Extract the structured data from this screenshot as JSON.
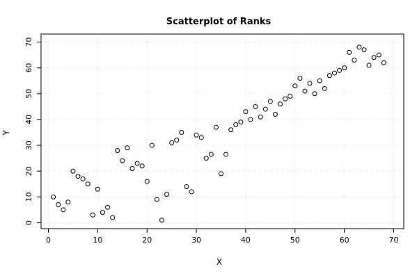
{
  "chart_data": {
    "type": "scatter",
    "title": "Scatterplot of Ranks",
    "xlabel": "X",
    "ylabel": "Y",
    "xlim": [
      0,
      70
    ],
    "ylim": [
      0,
      70
    ],
    "xticks": [
      0,
      10,
      20,
      30,
      40,
      50,
      60,
      70
    ],
    "yticks": [
      0,
      10,
      20,
      30,
      40,
      50,
      60,
      70
    ],
    "grid": true,
    "marker": "open-circle",
    "points": [
      {
        "x": 1,
        "y": 10
      },
      {
        "x": 2,
        "y": 7
      },
      {
        "x": 3,
        "y": 5
      },
      {
        "x": 4,
        "y": 8
      },
      {
        "x": 5,
        "y": 20
      },
      {
        "x": 6,
        "y": 18
      },
      {
        "x": 7,
        "y": 17
      },
      {
        "x": 8,
        "y": 15
      },
      {
        "x": 9,
        "y": 3
      },
      {
        "x": 10,
        "y": 13
      },
      {
        "x": 11,
        "y": 4
      },
      {
        "x": 12,
        "y": 6
      },
      {
        "x": 13,
        "y": 2
      },
      {
        "x": 14,
        "y": 28
      },
      {
        "x": 15,
        "y": 24
      },
      {
        "x": 16,
        "y": 29
      },
      {
        "x": 17,
        "y": 21
      },
      {
        "x": 18,
        "y": 23
      },
      {
        "x": 19,
        "y": 22
      },
      {
        "x": 20,
        "y": 16
      },
      {
        "x": 21,
        "y": 30
      },
      {
        "x": 22,
        "y": 9
      },
      {
        "x": 23,
        "y": 1
      },
      {
        "x": 24,
        "y": 11
      },
      {
        "x": 25,
        "y": 31
      },
      {
        "x": 26,
        "y": 32
      },
      {
        "x": 27,
        "y": 35
      },
      {
        "x": 28,
        "y": 14
      },
      {
        "x": 29,
        "y": 12
      },
      {
        "x": 30,
        "y": 34
      },
      {
        "x": 31,
        "y": 33
      },
      {
        "x": 32,
        "y": 25
      },
      {
        "x": 33,
        "y": 26.5
      },
      {
        "x": 34,
        "y": 37
      },
      {
        "x": 35,
        "y": 19
      },
      {
        "x": 36,
        "y": 26.5
      },
      {
        "x": 37,
        "y": 36
      },
      {
        "x": 38,
        "y": 38
      },
      {
        "x": 39,
        "y": 39
      },
      {
        "x": 40,
        "y": 43
      },
      {
        "x": 41,
        "y": 40
      },
      {
        "x": 42,
        "y": 45
      },
      {
        "x": 43,
        "y": 41
      },
      {
        "x": 44,
        "y": 44
      },
      {
        "x": 45,
        "y": 47
      },
      {
        "x": 46,
        "y": 42
      },
      {
        "x": 47,
        "y": 46
      },
      {
        "x": 48,
        "y": 48
      },
      {
        "x": 49,
        "y": 49
      },
      {
        "x": 50,
        "y": 53
      },
      {
        "x": 51,
        "y": 56
      },
      {
        "x": 52,
        "y": 51
      },
      {
        "x": 53,
        "y": 54
      },
      {
        "x": 54,
        "y": 50
      },
      {
        "x": 55,
        "y": 55
      },
      {
        "x": 56,
        "y": 52
      },
      {
        "x": 57,
        "y": 57
      },
      {
        "x": 58,
        "y": 58
      },
      {
        "x": 59,
        "y": 59
      },
      {
        "x": 60,
        "y": 60
      },
      {
        "x": 61,
        "y": 66
      },
      {
        "x": 62,
        "y": 63
      },
      {
        "x": 63,
        "y": 68
      },
      {
        "x": 64,
        "y": 67
      },
      {
        "x": 65,
        "y": 61
      },
      {
        "x": 66,
        "y": 64
      },
      {
        "x": 67,
        "y": 65
      },
      {
        "x": 68,
        "y": 62
      }
    ]
  }
}
